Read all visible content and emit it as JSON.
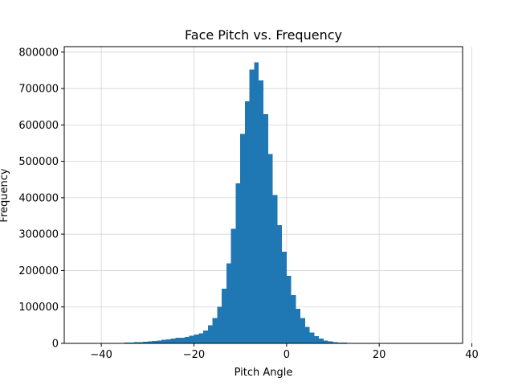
{
  "chart_data": {
    "type": "bar",
    "title": "Face Pitch vs. Frequency",
    "xlabel": "Pitch Angle",
    "ylabel": "Frequency",
    "xlim": [
      -48,
      38
    ],
    "ylim": [
      0,
      815000
    ],
    "xticks": [
      -40,
      -20,
      0,
      20,
      40
    ],
    "xtick_labels": [
      "−40",
      "−20",
      "0",
      "20",
      "40"
    ],
    "yticks": [
      0,
      100000,
      200000,
      300000,
      400000,
      500000,
      600000,
      700000,
      800000
    ],
    "ytick_labels": [
      "0",
      "100000",
      "200000",
      "300000",
      "400000",
      "500000",
      "600000",
      "700000",
      "800000"
    ],
    "grid": true,
    "bar_color": "#1f77b4",
    "bin_width": 1,
    "bins": [
      {
        "x0": -37,
        "value": 1000
      },
      {
        "x0": -36,
        "value": 1500
      },
      {
        "x0": -35,
        "value": 2000
      },
      {
        "x0": -34,
        "value": 2500
      },
      {
        "x0": -33,
        "value": 3000
      },
      {
        "x0": -32,
        "value": 3500
      },
      {
        "x0": -31,
        "value": 4500
      },
      {
        "x0": -30,
        "value": 5500
      },
      {
        "x0": -29,
        "value": 6500
      },
      {
        "x0": -28,
        "value": 8000
      },
      {
        "x0": -27,
        "value": 9500
      },
      {
        "x0": -26,
        "value": 11000
      },
      {
        "x0": -25,
        "value": 13000
      },
      {
        "x0": -24,
        "value": 15000
      },
      {
        "x0": -23,
        "value": 16000
      },
      {
        "x0": -22,
        "value": 18000
      },
      {
        "x0": -21,
        "value": 21000
      },
      {
        "x0": -20,
        "value": 24000
      },
      {
        "x0": -19,
        "value": 28000
      },
      {
        "x0": -18,
        "value": 35000
      },
      {
        "x0": -17,
        "value": 50000
      },
      {
        "x0": -16,
        "value": 70000
      },
      {
        "x0": -15,
        "value": 100000
      },
      {
        "x0": -14,
        "value": 150000
      },
      {
        "x0": -13,
        "value": 220000
      },
      {
        "x0": -12,
        "value": 315000
      },
      {
        "x0": -11,
        "value": 440000
      },
      {
        "x0": -10,
        "value": 575000
      },
      {
        "x0": -9,
        "value": 665000
      },
      {
        "x0": -8,
        "value": 752000
      },
      {
        "x0": -7,
        "value": 772000
      },
      {
        "x0": -6,
        "value": 722000
      },
      {
        "x0": -5,
        "value": 630000
      },
      {
        "x0": -4,
        "value": 520000
      },
      {
        "x0": -3,
        "value": 408000
      },
      {
        "x0": -2,
        "value": 325000
      },
      {
        "x0": -1,
        "value": 252000
      },
      {
        "x0": 0,
        "value": 185000
      },
      {
        "x0": 1,
        "value": 132000
      },
      {
        "x0": 2,
        "value": 95000
      },
      {
        "x0": 3,
        "value": 70000
      },
      {
        "x0": 4,
        "value": 45000
      },
      {
        "x0": 5,
        "value": 30000
      },
      {
        "x0": 6,
        "value": 20000
      },
      {
        "x0": 7,
        "value": 13000
      },
      {
        "x0": 8,
        "value": 8000
      },
      {
        "x0": 9,
        "value": 5000
      },
      {
        "x0": 10,
        "value": 3500
      },
      {
        "x0": 11,
        "value": 2500
      },
      {
        "x0": 12,
        "value": 1800
      },
      {
        "x0": 13,
        "value": 1200
      },
      {
        "x0": 14,
        "value": 800
      },
      {
        "x0": 15,
        "value": 500
      },
      {
        "x0": 16,
        "value": 300
      },
      {
        "x0": 17,
        "value": 200
      }
    ]
  }
}
